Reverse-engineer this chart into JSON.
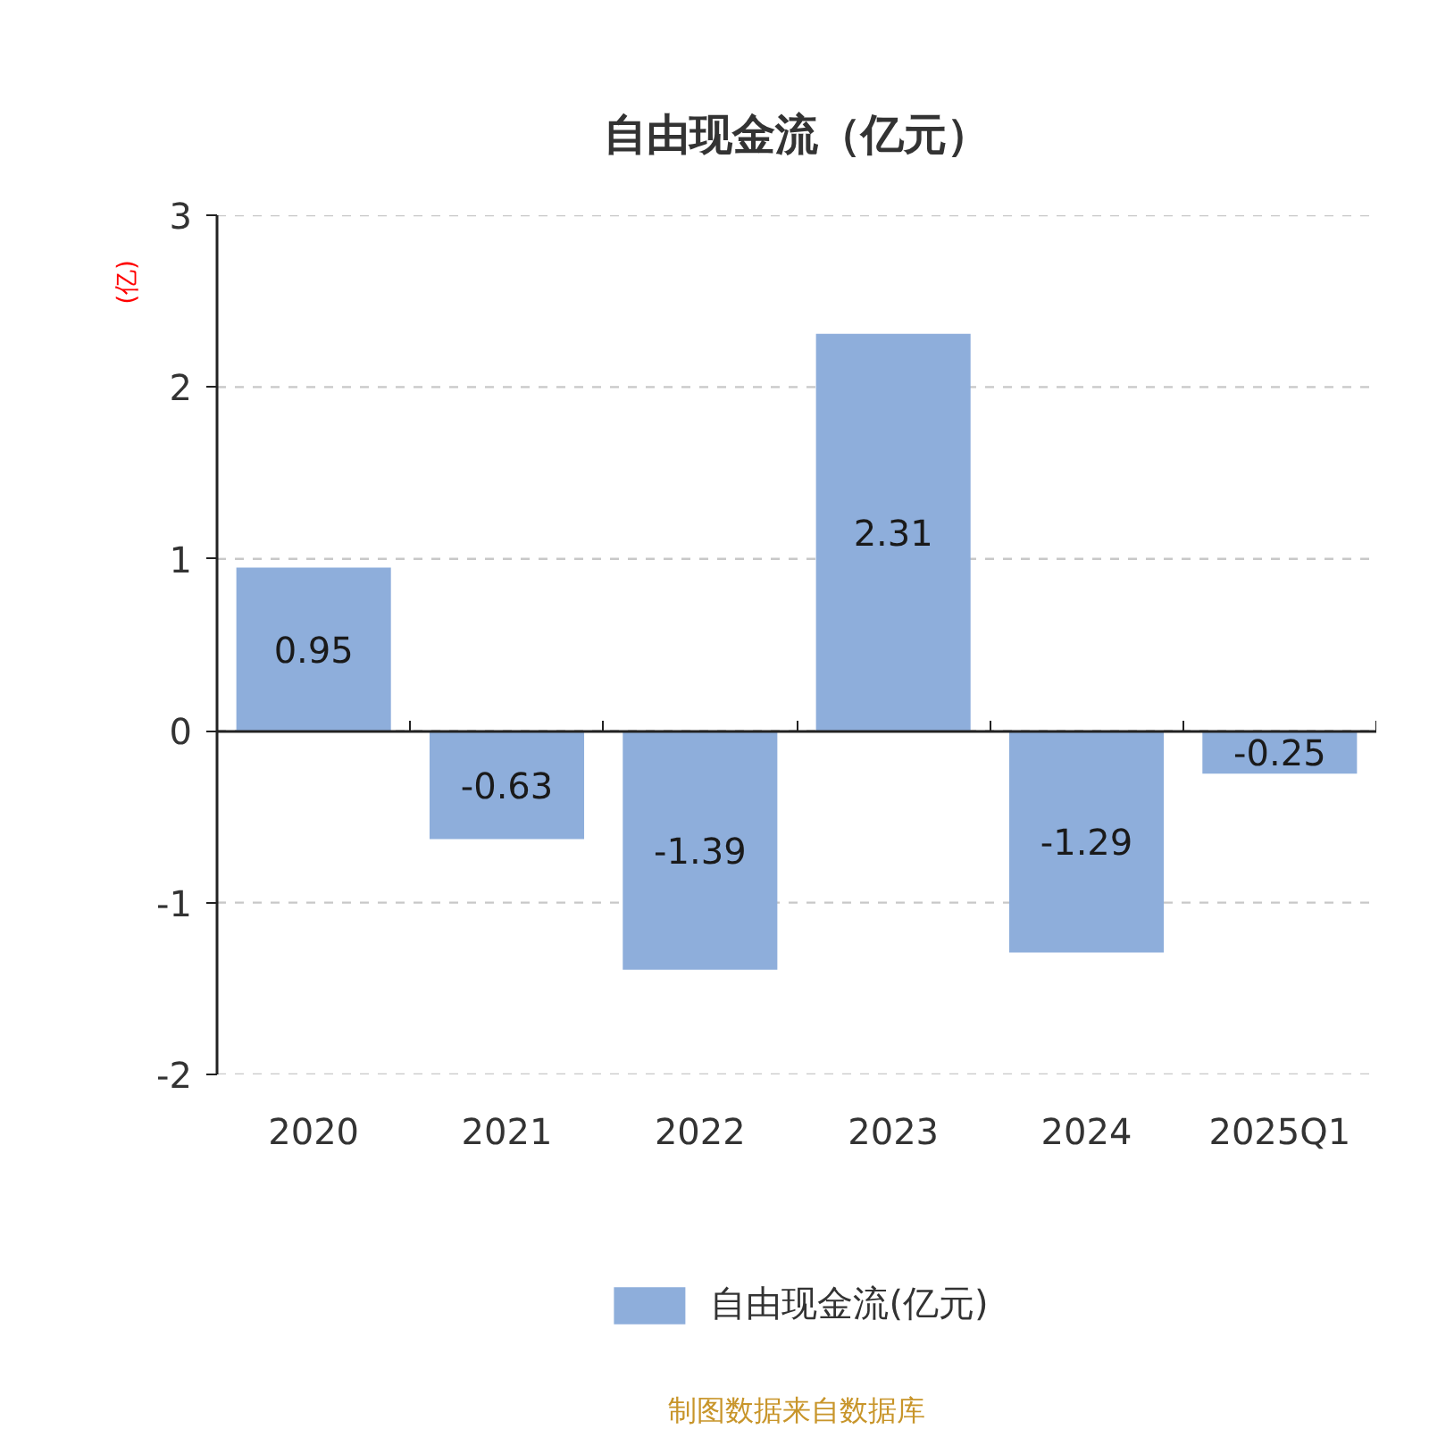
{
  "chart_data": {
    "type": "bar",
    "title": "自由现金流（亿元）",
    "ylabel": "(亿)",
    "categories": [
      "2020",
      "2021",
      "2022",
      "2023",
      "2024",
      "2025Q1"
    ],
    "series": [
      {
        "name": "自由现金流(亿元)",
        "color": "#8eaedb",
        "values": [
          0.95,
          -0.63,
          -1.39,
          2.31,
          -1.29,
          -0.25
        ]
      }
    ],
    "ylim": [
      -2,
      3
    ],
    "yticks": [
      -2,
      -1,
      0,
      1,
      2,
      3
    ],
    "grid": "y",
    "legend": "bottom",
    "data_labels": true,
    "annotations": [
      "制图数据来自数据库"
    ]
  }
}
